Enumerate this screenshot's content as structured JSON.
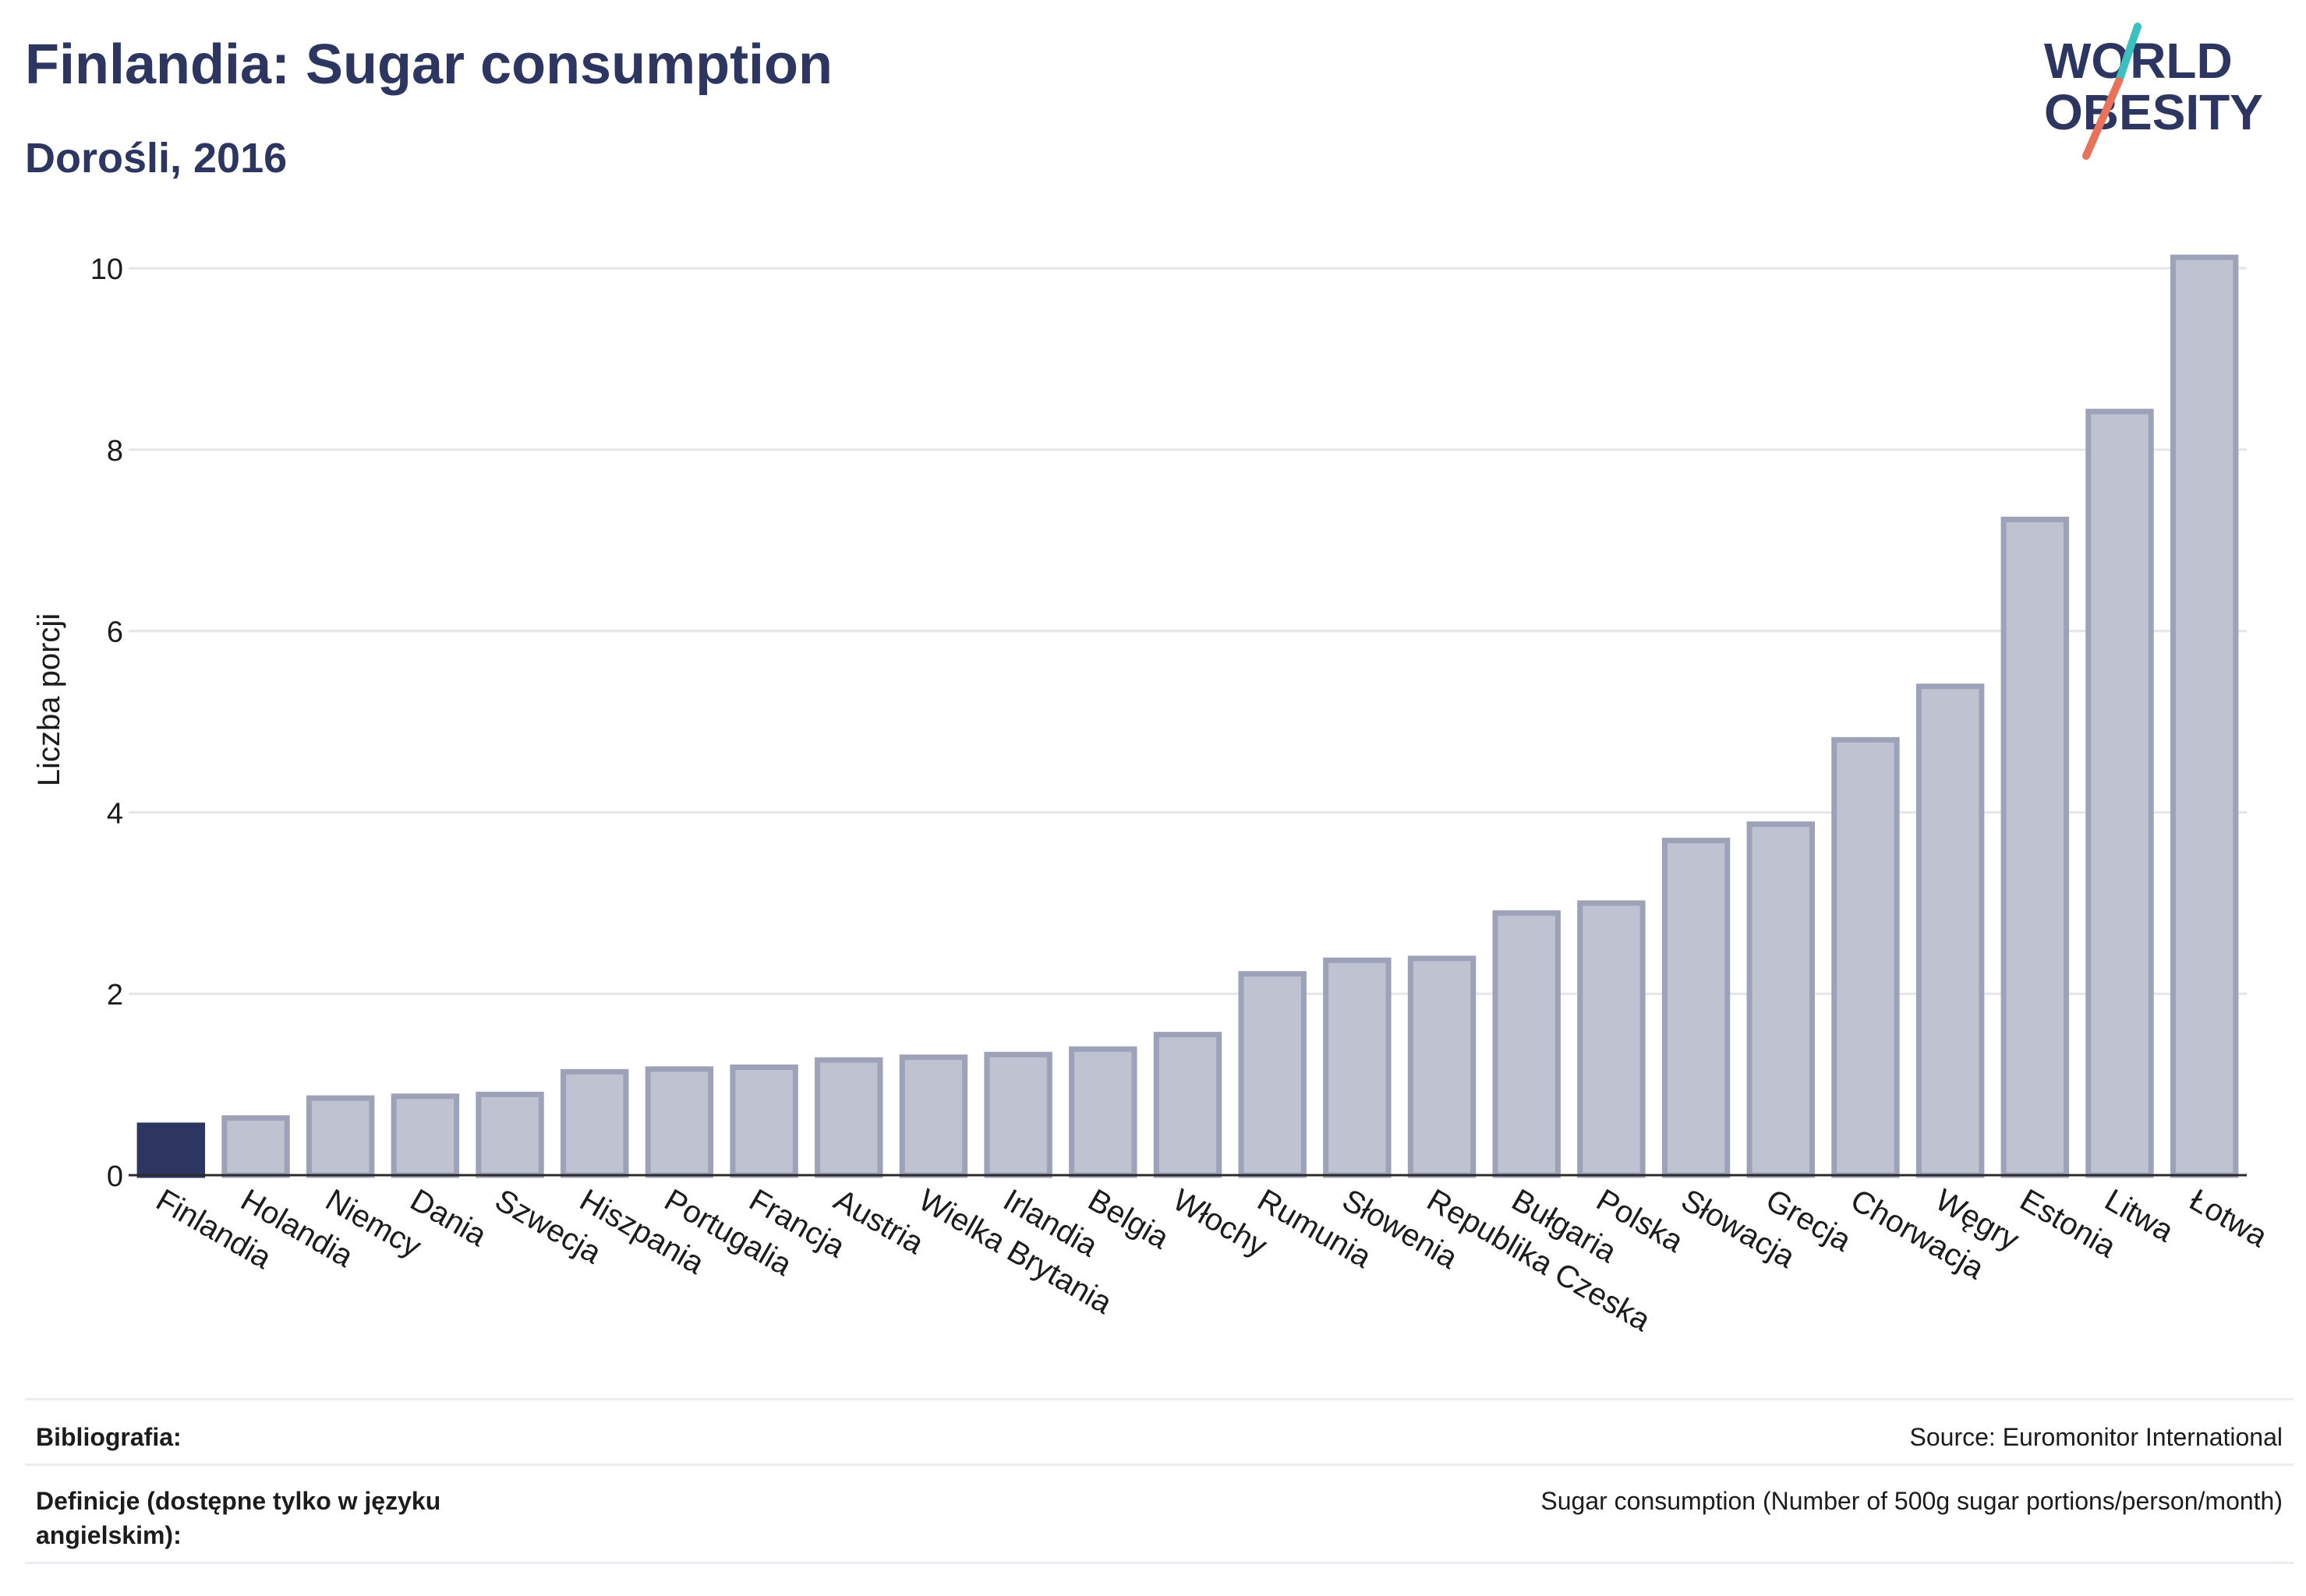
{
  "header": {
    "title": "Finlandia: Sugar consumption",
    "subtitle": "Dorośli, 2016"
  },
  "logo": {
    "line1": "WORLD",
    "line2": "OBESITY",
    "accent_teal": "#3bbfbf",
    "accent_coral": "#e8735a"
  },
  "colors": {
    "highlight": "#2d3561",
    "bar_fill": "#bfc2d0",
    "bar_stroke": "#9da2b8",
    "grid": "#e6e6ea",
    "axis": "#2b2b2b"
  },
  "chart_data": {
    "type": "bar",
    "title": "Finlandia: Sugar consumption",
    "subtitle": "Dorośli, 2016",
    "xlabel": "",
    "ylabel": "Liczba porcji",
    "ylim": [
      0,
      10.5
    ],
    "yticks": [
      0,
      2,
      4,
      6,
      8,
      10
    ],
    "grid": true,
    "highlight": "Finlandia",
    "categories": [
      "Finlandia",
      "Holandia",
      "Niemcy",
      "Dania",
      "Szwecja",
      "Hiszpania",
      "Portugalia",
      "Francja",
      "Austria",
      "Wielka Brytania",
      "Irlandia",
      "Belgia",
      "Włochy",
      "Rumunia",
      "Słowenia",
      "Republika Czeska",
      "Bułgaria",
      "Polska",
      "Słowacja",
      "Grecja",
      "Chorwacja",
      "Węgry",
      "Estonia",
      "Litwa",
      "Łotwa"
    ],
    "values": [
      0.55,
      0.63,
      0.85,
      0.87,
      0.89,
      1.14,
      1.17,
      1.19,
      1.27,
      1.3,
      1.33,
      1.39,
      1.55,
      2.22,
      2.37,
      2.39,
      2.89,
      3.0,
      3.69,
      3.87,
      4.8,
      5.39,
      7.23,
      8.42,
      10.12
    ]
  },
  "footer": {
    "bibliography_label": "Bibliografia:",
    "bibliography_value": "Source: Euromonitor International",
    "definitions_label_line1": "Definicje (dostępne tylko w języku",
    "definitions_label_line2": "angielskim):",
    "definitions_value": "Sugar consumption (Number of 500g sugar portions/person/month)"
  }
}
